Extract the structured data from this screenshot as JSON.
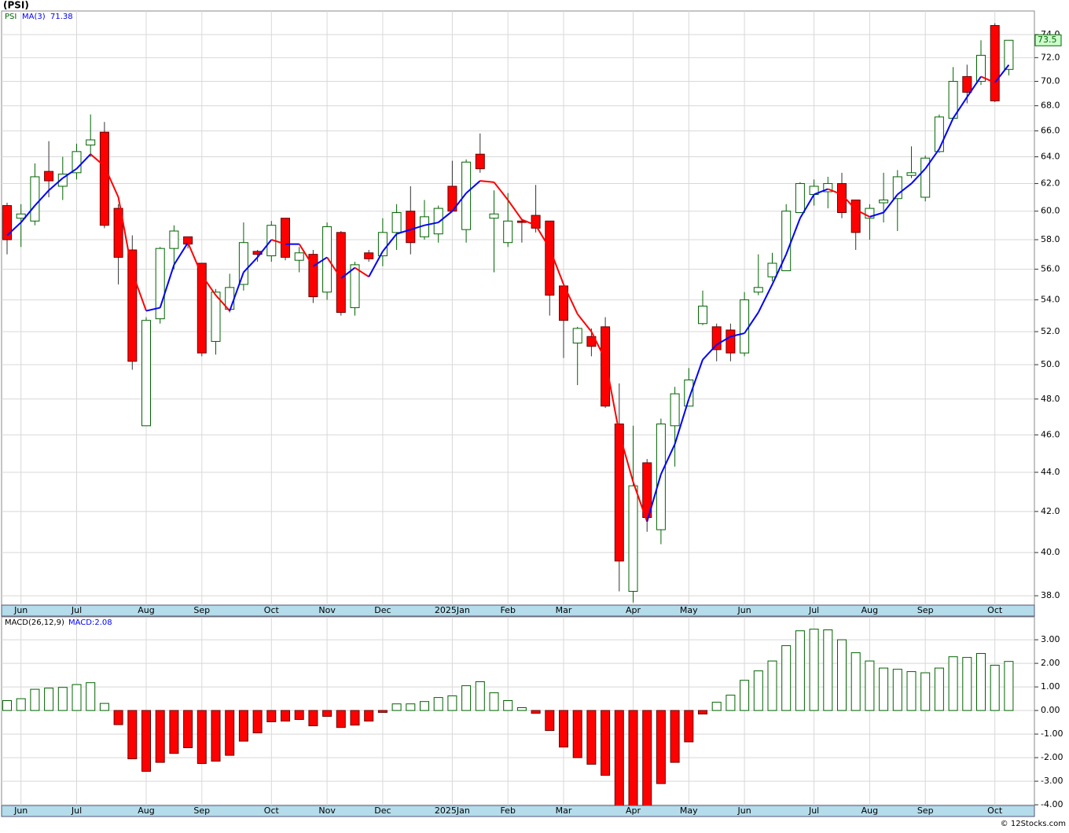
{
  "chart_data": [
    {
      "type": "candlestick",
      "title": "(PSI)",
      "name": "PSI",
      "log_scale": true,
      "grid": true,
      "up_color": "#006400",
      "down_color": "#ff0000",
      "open": [
        60.4,
        59.5,
        59.3,
        62.9,
        61.8,
        62.8,
        64.9,
        65.9,
        60.2,
        57.3,
        46.5,
        52.8,
        57.4,
        58.2,
        56.4,
        51.4,
        53.4,
        55.0,
        57.2,
        56.9,
        59.5,
        56.6,
        57.0,
        54.5,
        58.5,
        53.5,
        57.1,
        56.9,
        58.5,
        60.0,
        58.2,
        58.4,
        61.8,
        58.7,
        64.2,
        59.5,
        57.8,
        59.3,
        59.7,
        59.3,
        54.9,
        51.3,
        51.7,
        52.3,
        46.6,
        38.2,
        44.5,
        41.1,
        46.5,
        47.6,
        52.5,
        52.3,
        52.1,
        50.7,
        54.5,
        55.5,
        55.9,
        59.9,
        61.2,
        61.4,
        62.0,
        60.8,
        59.5,
        60.6,
        60.9,
        62.6,
        61.0,
        64.4,
        67.0,
        70.4,
        70.0,
        74.8,
        71.0
      ],
      "high": [
        60.6,
        60.5,
        63.5,
        65.2,
        64.0,
        65.0,
        67.3,
        66.7,
        60.5,
        58.3,
        52.9,
        57.5,
        59.0,
        58.2,
        56.4,
        54.7,
        55.7,
        59.2,
        57.3,
        59.3,
        59.5,
        57.5,
        57.3,
        59.2,
        58.6,
        56.5,
        57.3,
        59.5,
        60.5,
        61.8,
        60.8,
        60.4,
        63.7,
        63.8,
        65.8,
        61.5,
        61.3,
        59.4,
        61.9,
        59.3,
        54.9,
        52.3,
        52.2,
        52.9,
        48.9,
        46.5,
        44.7,
        46.9,
        48.7,
        49.8,
        54.6,
        52.5,
        52.5,
        54.5,
        57.0,
        57.1,
        60.5,
        62.1,
        62.3,
        62.5,
        62.8,
        60.8,
        60.5,
        62.8,
        63.0,
        64.8,
        64.1,
        67.3,
        71.2,
        71.4,
        73.5,
        75.0,
        73.5
      ],
      "low": [
        57.0,
        57.5,
        59.0,
        61.0,
        60.8,
        62.3,
        64.0,
        58.8,
        55.0,
        49.7,
        46.5,
        52.5,
        56.0,
        57.4,
        50.5,
        50.6,
        53.2,
        54.6,
        56.5,
        56.5,
        56.6,
        55.8,
        53.8,
        54.0,
        53.0,
        53.0,
        56.5,
        56.2,
        57.3,
        57.0,
        58.0,
        57.8,
        60.0,
        57.8,
        62.8,
        55.8,
        57.5,
        57.8,
        58.5,
        53.0,
        50.4,
        48.8,
        50.5,
        47.5,
        38.2,
        37.7,
        41.0,
        40.4,
        44.3,
        47.6,
        52.4,
        50.2,
        50.2,
        50.5,
        54.3,
        55.2,
        55.9,
        59.9,
        60.4,
        60.2,
        59.5,
        57.3,
        58.0,
        59.2,
        58.6,
        62.4,
        60.7,
        64.3,
        66.9,
        68.2,
        69.7,
        68.3,
        70.5
      ],
      "close": [
        58.0,
        59.8,
        62.5,
        62.2,
        62.7,
        64.4,
        65.3,
        59.0,
        56.8,
        50.2,
        52.7,
        57.4,
        58.6,
        57.7,
        50.7,
        54.5,
        54.8,
        57.8,
        57.0,
        59.0,
        56.8,
        57.1,
        54.2,
        58.9,
        53.2,
        56.3,
        56.7,
        58.5,
        59.9,
        57.8,
        59.6,
        60.2,
        60.0,
        63.6,
        63.1,
        59.8,
        59.3,
        59.2,
        58.8,
        54.3,
        52.7,
        52.2,
        51.1,
        47.6,
        39.6,
        43.3,
        41.7,
        46.6,
        48.3,
        49.1,
        53.6,
        50.9,
        50.7,
        54.0,
        54.8,
        56.4,
        60.0,
        62.0,
        61.8,
        62.0,
        59.9,
        58.5,
        60.2,
        60.8,
        62.5,
        62.8,
        63.9,
        67.1,
        70.0,
        69.1,
        72.2,
        68.4,
        73.5
      ],
      "ma": {
        "name": "MA(3)",
        "up_color": "#0000ff",
        "down_color": "#ff0000",
        "values": [
          58.3,
          59.2,
          60.4,
          61.5,
          62.4,
          63.1,
          64.2,
          63.3,
          61.0,
          55.8,
          53.3,
          53.5,
          56.3,
          57.8,
          55.6,
          54.3,
          53.3,
          55.8,
          56.8,
          58.0,
          57.7,
          57.7,
          56.2,
          56.8,
          55.4,
          56.1,
          55.5,
          57.2,
          58.4,
          58.7,
          59.0,
          59.2,
          60.0,
          61.3,
          62.2,
          62.1,
          60.8,
          59.4,
          59.0,
          57.4,
          55.0,
          53.1,
          52.0,
          50.3,
          46.1,
          43.5,
          41.5,
          43.9,
          45.5,
          48.0,
          50.3,
          51.2,
          51.7,
          51.9,
          53.2,
          55.0,
          57.0,
          59.5,
          61.2,
          61.6,
          61.2,
          60.1,
          59.6,
          59.9,
          61.2,
          62.0,
          63.1,
          64.6,
          67.0,
          68.7,
          70.4,
          69.9,
          71.38
        ]
      },
      "ylim": [
        37.58,
        76.1
      ],
      "yticks": [
        {
          "value": 38,
          "label": "38.0"
        },
        {
          "value": 40,
          "label": "40.0"
        },
        {
          "value": 42,
          "label": "42.0"
        },
        {
          "value": 44,
          "label": "44.0"
        },
        {
          "value": 46,
          "label": "46.0"
        },
        {
          "value": 48,
          "label": "48.0"
        },
        {
          "value": 50,
          "label": "50.0"
        },
        {
          "value": 52,
          "label": "52.0"
        },
        {
          "value": 54,
          "label": "54.0"
        },
        {
          "value": 56,
          "label": "56.0"
        },
        {
          "value": 58,
          "label": "58.0"
        },
        {
          "value": 60,
          "label": "60.0"
        },
        {
          "value": 62,
          "label": "62.0"
        },
        {
          "value": 64,
          "label": "64.0"
        },
        {
          "value": 66,
          "label": "66.0"
        },
        {
          "value": 68,
          "label": "68.0"
        },
        {
          "value": 70,
          "label": "70.0"
        },
        {
          "value": 72,
          "label": "72.0"
        },
        {
          "value": 74,
          "label": "74.0"
        }
      ],
      "x_labels": [
        "Jun",
        "Jul",
        "Aug",
        "Sep",
        "Oct",
        "Nov",
        "Dec",
        "2025Jan",
        "Feb",
        "Mar",
        "Apr",
        "May",
        "Jun",
        "Jul",
        "Aug",
        "Sep",
        "Oct"
      ]
    },
    {
      "type": "bar",
      "title": "MACD(26,12,9)",
      "legend": "MACD:2.08",
      "grid": true,
      "up_color": "#006400",
      "down_color": "#ff0000",
      "values": [
        0.42,
        0.5,
        0.9,
        0.95,
        0.98,
        1.1,
        1.18,
        0.3,
        -0.6,
        -2.05,
        -2.58,
        -2.2,
        -1.82,
        -1.58,
        -2.25,
        -2.15,
        -1.9,
        -1.3,
        -0.95,
        -0.48,
        -0.45,
        -0.38,
        -0.65,
        -0.25,
        -0.72,
        -0.62,
        -0.45,
        -0.08,
        0.28,
        0.28,
        0.38,
        0.55,
        0.62,
        1.05,
        1.22,
        0.75,
        0.42,
        0.12,
        -0.12,
        -0.85,
        -1.55,
        -2.0,
        -2.28,
        -2.75,
        -4.2,
        -4.4,
        -4.1,
        -3.1,
        -2.2,
        -1.33,
        -0.15,
        0.35,
        0.65,
        1.28,
        1.68,
        2.1,
        2.75,
        3.38,
        3.45,
        3.42,
        3.0,
        2.45,
        2.1,
        1.8,
        1.75,
        1.65,
        1.6,
        1.8,
        2.28,
        2.25,
        2.42,
        1.92,
        2.08
      ],
      "ylim": [
        -4.03,
        3.97
      ],
      "yticks": [
        {
          "value": 3,
          "label": "3.00"
        },
        {
          "value": 2,
          "label": "2.00"
        },
        {
          "value": 1,
          "label": "1.00"
        },
        {
          "value": 0,
          "label": "0.00"
        },
        {
          "value": -1,
          "label": "-1.00"
        },
        {
          "value": -2,
          "label": "-2.00"
        },
        {
          "value": -3,
          "label": "-3.00"
        },
        {
          "value": -4,
          "label": "-4.00"
        }
      ]
    }
  ],
  "footer": "© 12Stocks.com"
}
